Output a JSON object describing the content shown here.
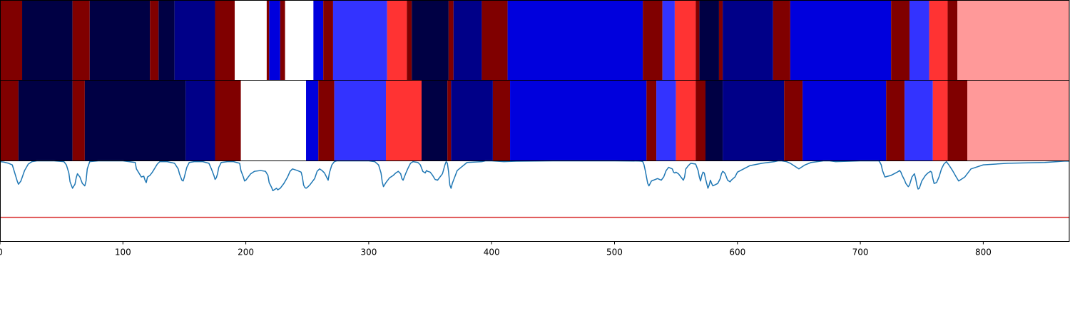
{
  "chart_data": {
    "type": "heatmap",
    "xlim": [
      0,
      870
    ],
    "x_ticks": [
      0,
      100,
      200,
      300,
      400,
      500,
      600,
      700,
      800
    ],
    "label_colors": {
      "a": "#000044",
      "b": "#000088",
      "c": "#0000dd",
      "d": "#3333ff",
      "e": "#ff3333",
      "f": "#800000",
      "g": "#ff9999",
      "w": "#ffffff"
    },
    "rows": [
      {
        "segments": [
          {
            "start": 0,
            "end": 18,
            "label": "f"
          },
          {
            "start": 18,
            "end": 59,
            "label": "a"
          },
          {
            "start": 59,
            "end": 73,
            "label": "f"
          },
          {
            "start": 73,
            "end": 122,
            "label": "a"
          },
          {
            "start": 122,
            "end": 129,
            "label": "f"
          },
          {
            "start": 129,
            "end": 142,
            "label": "a"
          },
          {
            "start": 142,
            "end": 175,
            "label": "b"
          },
          {
            "start": 175,
            "end": 191,
            "label": "f"
          },
          {
            "start": 191,
            "end": 217,
            "label": "w"
          },
          {
            "start": 217,
            "end": 219,
            "label": "f"
          },
          {
            "start": 219,
            "end": 228,
            "label": "c"
          },
          {
            "start": 228,
            "end": 232,
            "label": "f"
          },
          {
            "start": 232,
            "end": 255,
            "label": "w"
          },
          {
            "start": 255,
            "end": 263,
            "label": "c"
          },
          {
            "start": 263,
            "end": 271,
            "label": "f"
          },
          {
            "start": 271,
            "end": 315,
            "label": "d"
          },
          {
            "start": 315,
            "end": 331,
            "label": "e"
          },
          {
            "start": 331,
            "end": 335,
            "label": "f"
          },
          {
            "start": 335,
            "end": 365,
            "label": "a"
          },
          {
            "start": 365,
            "end": 369,
            "label": "f"
          },
          {
            "start": 369,
            "end": 392,
            "label": "b"
          },
          {
            "start": 392,
            "end": 413,
            "label": "f"
          },
          {
            "start": 413,
            "end": 523,
            "label": "c"
          },
          {
            "start": 523,
            "end": 539,
            "label": "f"
          },
          {
            "start": 539,
            "end": 549,
            "label": "d"
          },
          {
            "start": 549,
            "end": 566,
            "label": "e"
          },
          {
            "start": 566,
            "end": 569,
            "label": "f"
          },
          {
            "start": 569,
            "end": 585,
            "label": "a"
          },
          {
            "start": 585,
            "end": 588,
            "label": "f"
          },
          {
            "start": 588,
            "end": 629,
            "label": "b"
          },
          {
            "start": 629,
            "end": 643,
            "label": "f"
          },
          {
            "start": 643,
            "end": 725,
            "label": "c"
          },
          {
            "start": 725,
            "end": 740,
            "label": "f"
          },
          {
            "start": 740,
            "end": 756,
            "label": "d"
          },
          {
            "start": 756,
            "end": 771,
            "label": "e"
          },
          {
            "start": 771,
            "end": 779,
            "label": "f"
          },
          {
            "start": 779,
            "end": 870,
            "label": "g"
          }
        ]
      },
      {
        "segments": [
          {
            "start": 0,
            "end": 15,
            "label": "f"
          },
          {
            "start": 15,
            "end": 59,
            "label": "a"
          },
          {
            "start": 59,
            "end": 69,
            "label": "f"
          },
          {
            "start": 69,
            "end": 151,
            "label": "a"
          },
          {
            "start": 151,
            "end": 175,
            "label": "b"
          },
          {
            "start": 175,
            "end": 196,
            "label": "f"
          },
          {
            "start": 196,
            "end": 249,
            "label": "w"
          },
          {
            "start": 249,
            "end": 259,
            "label": "c"
          },
          {
            "start": 259,
            "end": 272,
            "label": "f"
          },
          {
            "start": 272,
            "end": 314,
            "label": "d"
          },
          {
            "start": 314,
            "end": 343,
            "label": "e"
          },
          {
            "start": 343,
            "end": 364,
            "label": "a"
          },
          {
            "start": 364,
            "end": 367,
            "label": "f"
          },
          {
            "start": 367,
            "end": 401,
            "label": "b"
          },
          {
            "start": 401,
            "end": 415,
            "label": "f"
          },
          {
            "start": 415,
            "end": 526,
            "label": "c"
          },
          {
            "start": 526,
            "end": 534,
            "label": "f"
          },
          {
            "start": 534,
            "end": 550,
            "label": "d"
          },
          {
            "start": 550,
            "end": 566,
            "label": "e"
          },
          {
            "start": 566,
            "end": 574,
            "label": "f"
          },
          {
            "start": 574,
            "end": 588,
            "label": "a"
          },
          {
            "start": 588,
            "end": 638,
            "label": "b"
          },
          {
            "start": 638,
            "end": 653,
            "label": "f"
          },
          {
            "start": 653,
            "end": 721,
            "label": "c"
          },
          {
            "start": 721,
            "end": 736,
            "label": "f"
          },
          {
            "start": 736,
            "end": 759,
            "label": "d"
          },
          {
            "start": 759,
            "end": 771,
            "label": "e"
          },
          {
            "start": 771,
            "end": 787,
            "label": "f"
          },
          {
            "start": 787,
            "end": 870,
            "label": "g"
          }
        ]
      }
    ],
    "line": {
      "color": "#1f77b4",
      "ylim": [
        0,
        1
      ],
      "x": [
        0,
        3,
        7,
        10,
        12,
        14,
        15,
        17,
        20,
        23,
        26,
        30,
        36,
        44,
        52,
        54,
        56,
        57,
        59,
        61,
        62,
        63,
        65,
        67,
        69,
        70,
        71,
        73,
        80,
        100,
        110,
        111,
        113,
        115,
        117,
        118,
        119,
        120,
        122,
        124,
        126,
        128,
        130,
        136,
        142,
        145,
        146,
        147,
        148,
        149,
        150,
        152,
        154,
        158,
        165,
        170,
        172,
        174,
        175,
        176,
        177,
        178,
        180,
        185,
        190,
        195,
        196,
        198,
        199,
        200,
        202,
        204,
        207,
        212,
        216,
        218,
        219,
        220,
        221,
        221.5,
        222,
        223,
        225,
        226,
        228,
        231,
        234,
        236,
        238,
        242,
        245,
        246,
        247,
        248,
        249,
        250,
        252,
        256,
        258,
        260,
        262,
        264,
        266,
        267,
        268,
        270,
        272,
        274,
        280,
        300,
        305,
        308,
        310,
        311,
        312,
        314,
        317,
        320,
        322,
        324,
        326,
        327,
        328,
        330,
        332,
        334,
        336,
        340,
        342,
        344,
        346,
        347,
        348,
        350,
        352,
        354,
        356,
        360,
        362,
        363,
        364,
        365,
        366,
        367,
        368,
        372,
        380,
        392,
        395,
        400,
        410,
        420,
        450,
        500,
        520,
        522,
        523,
        524,
        525,
        526,
        527,
        528,
        530,
        535,
        538,
        540,
        542,
        544,
        547,
        548,
        549,
        550,
        552,
        555,
        556,
        557,
        558,
        560,
        562,
        566,
        568,
        569,
        570,
        571,
        572,
        573,
        574,
        575,
        576,
        577,
        578,
        579,
        580,
        584,
        586,
        587,
        588,
        589,
        590,
        591,
        592,
        593,
        594,
        595,
        598,
        600,
        605,
        610,
        620,
        630,
        633,
        636,
        640,
        643,
        646,
        650,
        655,
        660,
        665,
        670,
        675,
        680,
        700,
        712,
        715,
        716,
        717,
        718,
        720,
        725,
        730,
        732,
        733,
        734,
        735,
        736,
        737,
        738,
        739,
        740,
        742,
        744,
        745,
        746,
        747,
        748,
        750,
        753,
        755,
        757,
        758,
        759,
        760,
        762,
        764,
        766,
        768,
        770,
        772,
        775,
        778,
        780,
        785,
        790,
        800,
        820,
        850,
        860,
        865,
        868,
        870
      ],
      "y": [
        0.99,
        0.985,
        0.97,
        0.95,
        0.85,
        0.75,
        0.71,
        0.75,
        0.88,
        0.96,
        0.99,
        1.0,
        1.0,
        1.0,
        0.99,
        0.95,
        0.85,
        0.74,
        0.66,
        0.71,
        0.79,
        0.84,
        0.8,
        0.72,
        0.69,
        0.75,
        0.9,
        0.99,
        1.0,
        1.0,
        0.98,
        0.9,
        0.85,
        0.8,
        0.81,
        0.76,
        0.73,
        0.8,
        0.82,
        0.86,
        0.91,
        0.96,
        0.99,
        0.99,
        0.97,
        0.9,
        0.84,
        0.8,
        0.76,
        0.75,
        0.8,
        0.92,
        0.98,
        0.99,
        0.99,
        0.97,
        0.9,
        0.82,
        0.77,
        0.79,
        0.84,
        0.92,
        0.98,
        0.99,
        0.99,
        0.97,
        0.88,
        0.8,
        0.75,
        0.76,
        0.8,
        0.84,
        0.87,
        0.88,
        0.87,
        0.82,
        0.73,
        0.7,
        0.67,
        0.65,
        0.63,
        0.64,
        0.66,
        0.64,
        0.66,
        0.72,
        0.8,
        0.87,
        0.9,
        0.88,
        0.86,
        0.8,
        0.7,
        0.67,
        0.66,
        0.67,
        0.7,
        0.78,
        0.87,
        0.9,
        0.88,
        0.85,
        0.79,
        0.76,
        0.85,
        0.95,
        0.99,
        1.0,
        1.0,
        1.0,
        0.99,
        0.95,
        0.85,
        0.74,
        0.68,
        0.73,
        0.79,
        0.82,
        0.85,
        0.87,
        0.84,
        0.78,
        0.76,
        0.84,
        0.91,
        0.97,
        0.99,
        0.98,
        0.95,
        0.87,
        0.85,
        0.88,
        0.87,
        0.86,
        0.82,
        0.77,
        0.76,
        0.84,
        0.95,
        0.99,
        0.97,
        0.86,
        0.7,
        0.66,
        0.72,
        0.88,
        0.98,
        0.99,
        1.0,
        1.0,
        0.99,
        0.995,
        1.0,
        1.0,
        0.998,
        0.995,
        0.99,
        0.95,
        0.88,
        0.8,
        0.72,
        0.69,
        0.75,
        0.78,
        0.76,
        0.8,
        0.88,
        0.92,
        0.9,
        0.86,
        0.85,
        0.86,
        0.84,
        0.78,
        0.76,
        0.8,
        0.9,
        0.94,
        0.97,
        0.96,
        0.88,
        0.8,
        0.75,
        0.82,
        0.86,
        0.85,
        0.78,
        0.72,
        0.66,
        0.7,
        0.76,
        0.72,
        0.69,
        0.72,
        0.78,
        0.84,
        0.87,
        0.86,
        0.84,
        0.8,
        0.76,
        0.75,
        0.74,
        0.76,
        0.8,
        0.86,
        0.9,
        0.94,
        0.97,
        0.99,
        1.0,
        1.0,
        0.99,
        0.97,
        0.94,
        0.9,
        0.95,
        0.98,
        0.99,
        1.0,
        1.0,
        0.99,
        1.0,
        1.0,
        1.0,
        0.98,
        0.95,
        0.88,
        0.8,
        0.82,
        0.86,
        0.88,
        0.86,
        0.82,
        0.79,
        0.76,
        0.72,
        0.7,
        0.68,
        0.7,
        0.8,
        0.84,
        0.78,
        0.7,
        0.65,
        0.66,
        0.75,
        0.82,
        0.85,
        0.87,
        0.86,
        0.78,
        0.72,
        0.73,
        0.8,
        0.9,
        0.96,
        0.99,
        0.95,
        0.88,
        0.8,
        0.75,
        0.8,
        0.9,
        0.95,
        0.97,
        0.98,
        0.99,
        0.995,
        0.998,
        0.995,
        0.985,
        0.975,
        0.965,
        0.965
      ]
    },
    "threshold": {
      "y": 0.3,
      "color": "#d62728"
    }
  }
}
